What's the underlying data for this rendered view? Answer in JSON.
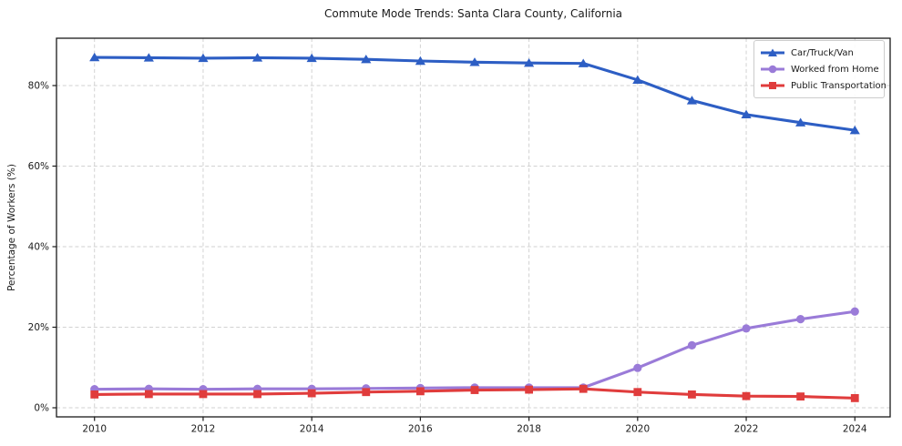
{
  "chart": {
    "title": "Commute Mode Trends: Santa Clara County, California",
    "ylabel": "Percentage of Workers (%)"
  },
  "chart_data": {
    "type": "line",
    "title": "Commute Mode Trends: Santa Clara County, California",
    "xlabel": "",
    "ylabel": "Percentage of Workers (%)",
    "x": [
      2010,
      2011,
      2012,
      2013,
      2014,
      2015,
      2016,
      2017,
      2018,
      2019,
      2020,
      2021,
      2022,
      2023,
      2024
    ],
    "series": [
      {
        "name": "Car/Truck/Van",
        "color": "#2d5ec4",
        "marker": "triangle",
        "values": [
          87.0,
          86.9,
          86.8,
          86.9,
          86.8,
          86.5,
          86.1,
          85.8,
          85.6,
          85.5,
          81.4,
          76.3,
          72.8,
          70.8,
          68.9
        ]
      },
      {
        "name": "Worked from Home",
        "color": "#9a7bd8",
        "marker": "circle",
        "values": [
          4.6,
          4.7,
          4.6,
          4.7,
          4.7,
          4.8,
          4.9,
          5.0,
          5.0,
          5.0,
          9.9,
          15.5,
          19.7,
          22.0,
          23.9
        ]
      },
      {
        "name": "Public Transportation",
        "color": "#e03c3c",
        "marker": "square",
        "values": [
          3.3,
          3.4,
          3.4,
          3.4,
          3.6,
          3.9,
          4.1,
          4.4,
          4.5,
          4.7,
          3.9,
          3.3,
          2.9,
          2.8,
          2.4
        ]
      }
    ],
    "x_ticks": [
      2010,
      2012,
      2014,
      2016,
      2018,
      2020,
      2022,
      2024
    ],
    "y_ticks": [
      0,
      20,
      40,
      60,
      80
    ],
    "y_tick_suffix": "%",
    "xlim": [
      2009.3,
      2024.65
    ],
    "ylim": [
      -2.26,
      91.75
    ],
    "grid": true,
    "grid_color": "#d2d2d2",
    "grid_dash": "4,2.8",
    "spine_color": "#1a1a1a",
    "legend_position": "upper right"
  }
}
